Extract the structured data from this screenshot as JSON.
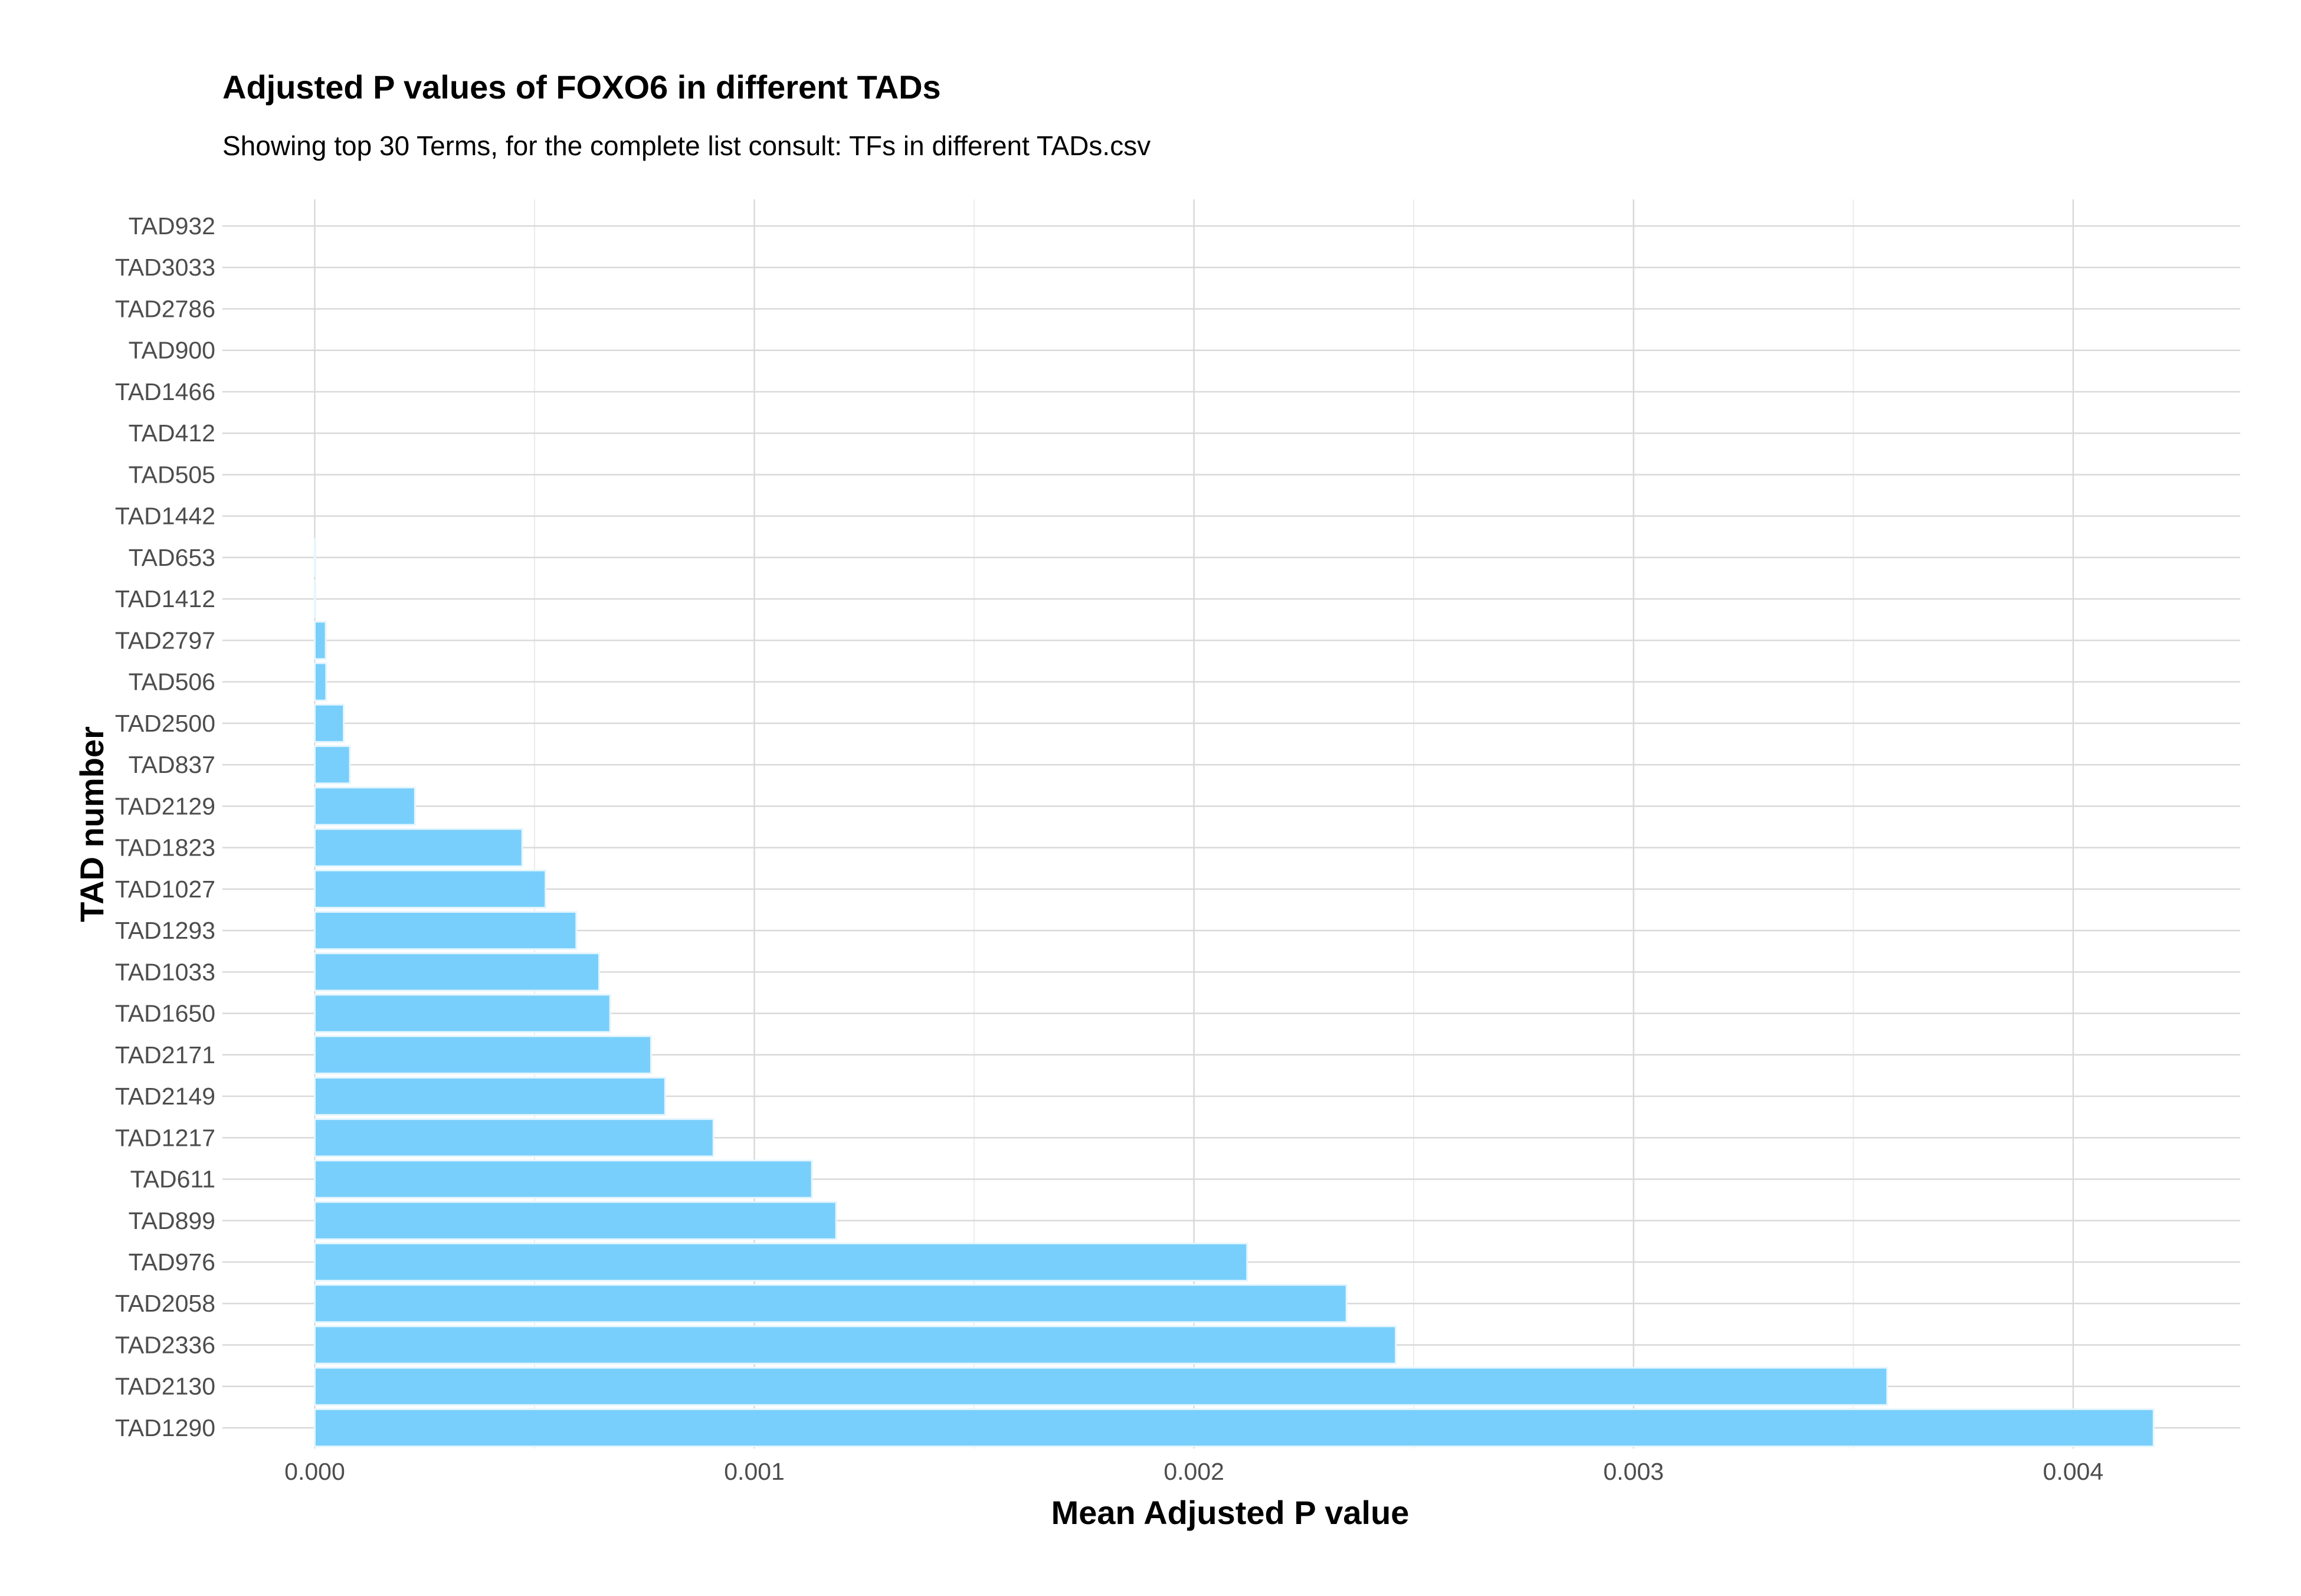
{
  "chart_data": {
    "type": "bar",
    "orientation": "horizontal",
    "title": "Adjusted P values of FOXO6 in different TADs",
    "subtitle": "Showing top 30 Terms, for the complete list consult: TFs in different TADs.csv",
    "xlabel": "Mean Adjusted P value",
    "ylabel": "TAD number",
    "xlim": [
      -0.00021,
      0.00438
    ],
    "x_ticks": [
      0.0,
      0.001,
      0.002,
      0.003,
      0.004
    ],
    "x_tick_labels": [
      "0.000",
      "0.001",
      "0.002",
      "0.003",
      "0.004"
    ],
    "x_minor_ticks": [
      0.0005,
      0.0015,
      0.0025,
      0.0035
    ],
    "grid": true,
    "bar_color": "#79CFFB",
    "categories": [
      "TAD932",
      "TAD3033",
      "TAD2786",
      "TAD900",
      "TAD1466",
      "TAD412",
      "TAD505",
      "TAD1442",
      "TAD653",
      "TAD1412",
      "TAD2797",
      "TAD506",
      "TAD2500",
      "TAD837",
      "TAD2129",
      "TAD1823",
      "TAD1027",
      "TAD1293",
      "TAD1033",
      "TAD1650",
      "TAD2171",
      "TAD2149",
      "TAD1217",
      "TAD611",
      "TAD899",
      "TAD976",
      "TAD2058",
      "TAD2336",
      "TAD2130",
      "TAD1290"
    ],
    "values": [
      0.0,
      0.0,
      0.0,
      0.0,
      0.0,
      0.0,
      0.0,
      0.0,
      1e-06,
      1e-06,
      2.5e-05,
      2.6e-05,
      6.6e-05,
      8e-05,
      0.000228,
      0.000472,
      0.000525,
      0.000595,
      0.000647,
      0.000672,
      0.000765,
      0.000797,
      0.000907,
      0.001131,
      0.001186,
      0.002121,
      0.002347,
      0.002459,
      0.003577,
      0.004183
    ]
  }
}
